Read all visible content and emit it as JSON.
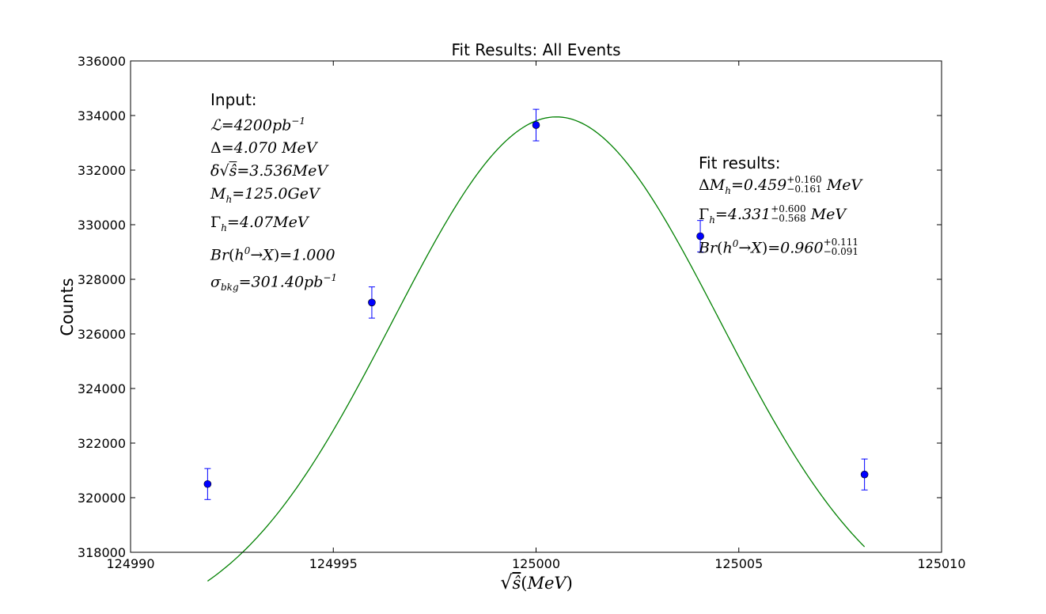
{
  "chart_data": {
    "type": "scatter",
    "title": "Fit Results: All Events",
    "xlabel": "√ŝ (MeV)",
    "ylabel": "Counts",
    "xlim": [
      124990,
      125010
    ],
    "ylim": [
      318000,
      336000
    ],
    "xticks": [
      124990,
      124995,
      125000,
      125005,
      125010
    ],
    "yticks": [
      318000,
      320000,
      322000,
      324000,
      326000,
      328000,
      330000,
      332000,
      334000,
      336000
    ],
    "grid": false,
    "series": [
      {
        "kind": "points_with_errorbars",
        "color": "#0000ff",
        "x": [
          124991.9,
          124995.95,
          125000.0,
          125004.05,
          125008.1
        ],
        "y": [
          320500,
          327150,
          333650,
          329580,
          320850
        ],
        "yerr": [
          567,
          572,
          578,
          575,
          567
        ]
      },
      {
        "kind": "fit_curve",
        "color": "#008000",
        "function": "A + B*exp(-(x-mu)^2/(2*sigma^2))",
        "params": {
          "A": 315000,
          "B": 18950,
          "mu": 125000.5,
          "sigma": 4.03
        },
        "x_range": [
          124991.9,
          125008.1
        ]
      }
    ],
    "annotations": {
      "input": {
        "heading": "Input:",
        "lines": [
          "ℒ=4200pb⁻¹",
          "Δ=4.070 MeV",
          "δ√ŝ=3.536MeV",
          "M_h=125.0GeV",
          "Γ_h=4.07MeV",
          "Br(h⁰→X)=1.000",
          "σ_bkg=301.40pb⁻¹"
        ]
      },
      "fit": {
        "heading": "Fit results:",
        "lines": [
          "ΔM_h=0.459 (+0.160 / −0.161) MeV",
          "Γ_h=4.331 (+0.600 / −0.568) MeV",
          "Br(h⁰→X)=0.960 (+0.111 / −0.091)"
        ]
      }
    }
  },
  "labels": {
    "title": "Fit Results: All Events",
    "ylabel": "Counts",
    "xlabel_unit": "MeV",
    "input_heading": "Input:",
    "fit_heading": "Fit results:"
  },
  "input_text": {
    "lumi_val": "4200pb",
    "lumi_exp": "−1",
    "delta_val": "4.070 MeV",
    "spread_val": "3.536MeV",
    "mh_val": "125.0GeV",
    "gh_val": "4.07MeV",
    "br_val": "1.000",
    "sigma_val": "301.40pb",
    "sigma_exp": "−1"
  },
  "fit_text": {
    "dm_val": "0.459",
    "dm_up": "+0.160",
    "dm_dn": "−0.161",
    "dm_unit": "MeV",
    "g_val": "4.331",
    "g_up": "+0.600",
    "g_dn": "−0.568",
    "g_unit": "MeV",
    "br_val": "0.960",
    "br_up": "+0.111",
    "br_dn": "−0.091"
  }
}
